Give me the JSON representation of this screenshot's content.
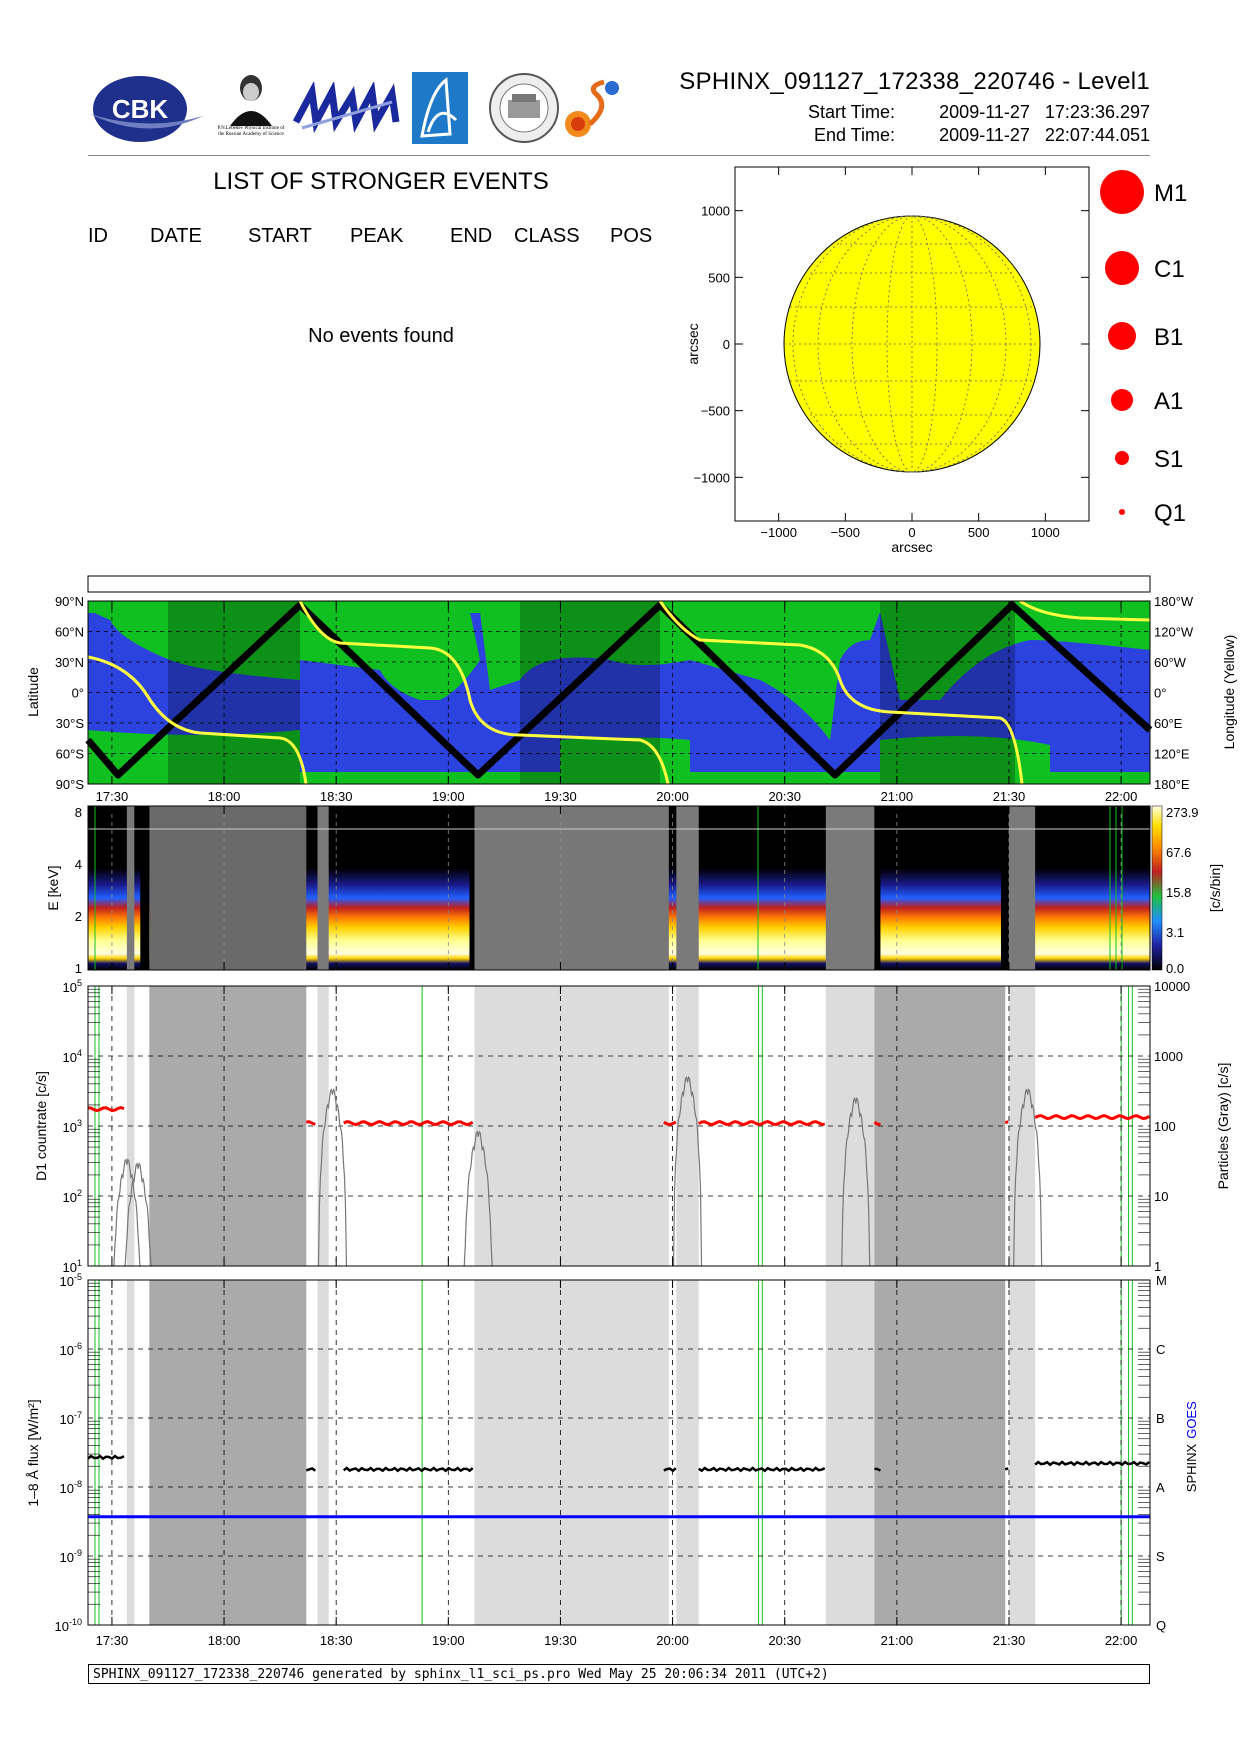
{
  "header": {
    "title": "SPHINX_091127_172338_220746 - Level1",
    "start_label": "Start Time:",
    "start_value": "2009-11-27   17:23:36.297",
    "end_label": "End Time:",
    "end_value": "2009-11-27   22:07:44.051",
    "logos": [
      "CBK",
      "P.N.Lebedev Physical Institute of the Russian Academy of Science",
      "MIFI",
      "sail-logo",
      "observatory-seal",
      "sun-logo"
    ],
    "cbk_text": "CBK",
    "lebedev_caption": "P.N.Lebedev Physical Institute of the Russian Academy of Science"
  },
  "events": {
    "title": "LIST OF STRONGER EVENTS",
    "columns": [
      "ID",
      "DATE",
      "START",
      "PEAK",
      "END",
      "CLASS",
      "POS"
    ],
    "message": "No events found"
  },
  "sun_plot": {
    "xlabel": "arcsec",
    "ylabel": "arcsec",
    "xticks": [
      "−1000",
      "−500",
      "0",
      "500",
      "1000"
    ],
    "yticks": [
      "1000",
      "500",
      "0",
      "−500",
      "−1000"
    ],
    "disk_color": "#ffff00"
  },
  "class_legend": [
    {
      "label": "M1",
      "r": 22
    },
    {
      "label": "C1",
      "r": 17
    },
    {
      "label": "B1",
      "r": 14
    },
    {
      "label": "A1",
      "r": 11
    },
    {
      "label": "S1",
      "r": 7
    },
    {
      "label": "Q1",
      "r": 3
    }
  ],
  "time_axis": {
    "ticks": [
      "17:30",
      "18:00",
      "18:30",
      "19:00",
      "19:30",
      "20:00",
      "20:30",
      "21:00",
      "21:30",
      "22:00"
    ]
  },
  "orbit_panel": {
    "ylabel_left": "Latitude",
    "ylabel_right": "Longitude (Yellow)",
    "left_ticks": [
      "90°N",
      "60°N",
      "30°N",
      "0°",
      "30°S",
      "60°S",
      "90°S"
    ],
    "right_ticks": [
      "180°W",
      "120°W",
      "60°W",
      "0°",
      "60°E",
      "120°E",
      "180°E"
    ]
  },
  "spectrum_panel": {
    "ylabel": "E [keV]",
    "y_ticks": [
      "8",
      "4",
      "2",
      "1"
    ],
    "colorbar_ticks": [
      "273.9",
      "67.6",
      "15.8",
      "3.1",
      "0.0"
    ],
    "colorbar_label": "[c/s/bin]"
  },
  "count_panel": {
    "ylabel_left": "D1 countrate [c/s]",
    "ylabel_right": "Particles (Gray) [c/s]",
    "left_ticks": [
      "10^5",
      "10^4",
      "10^3",
      "10^2",
      "10^1"
    ],
    "right_ticks": [
      "10000",
      "1000",
      "100",
      "10",
      "1"
    ]
  },
  "flux_panel": {
    "ylabel_left": "1–8 Å flux [W/m²]",
    "ylabel_right_a": "SPHINX",
    "ylabel_right_b": "GOES",
    "left_ticks": [
      "10^-5",
      "10^-6",
      "10^-7",
      "10^-8",
      "10^-9",
      "10^-10"
    ],
    "class_ticks": [
      "M",
      "C",
      "B",
      "A",
      "S",
      "Q"
    ],
    "goes_color": "#0000ff"
  },
  "chart_data": {
    "type": "line",
    "x_range": [
      "17:23",
      "22:08"
    ],
    "gaps": [
      [
        "17:34",
        "17:36"
      ],
      [
        "17:40",
        "18:22"
      ],
      [
        "18:25",
        "18:28"
      ],
      [
        "19:07",
        "19:59"
      ],
      [
        "20:01",
        "20:07"
      ],
      [
        "20:41",
        "20:54"
      ],
      [
        "21:30",
        "21:37"
      ]
    ],
    "count_rate_level_cs": 1100,
    "sphinx_flux_level_wm2": 1.8e-08,
    "goes_flux_level_wm2": 3.7e-09,
    "particle_peaks": [
      {
        "t": "17:34",
        "v": 40
      },
      {
        "t": "17:37",
        "v": 35
      },
      {
        "t": "18:29",
        "v": 400
      },
      {
        "t": "19:08",
        "v": 100
      },
      {
        "t": "20:04",
        "v": 600
      },
      {
        "t": "20:49",
        "v": 300
      },
      {
        "t": "21:35",
        "v": 400
      }
    ]
  }
}
